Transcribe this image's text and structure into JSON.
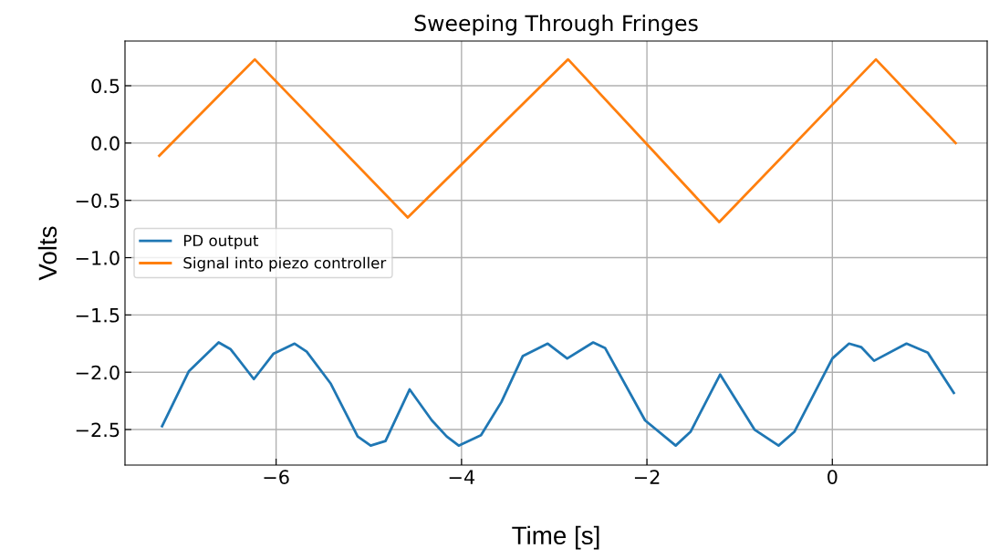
{
  "chart_data": {
    "type": "line",
    "title": "Sweeping Through Fringes",
    "xlabel": "Time [s]",
    "ylabel": "Volts",
    "xlim": [
      -7.63,
      1.67
    ],
    "ylim": [
      -2.81,
      0.89
    ],
    "xticks": [
      -6,
      -4,
      -2,
      0
    ],
    "yticks": [
      {
        "value": -2.5,
        "label": "−2.5"
      },
      {
        "value": -2,
        "label": "−2.0"
      },
      {
        "value": -1.5,
        "label": "−1.5"
      },
      {
        "value": -1,
        "label": "−1.0"
      },
      {
        "value": -0.5,
        "label": "−0.5"
      },
      {
        "value": 0,
        "label": "0.0"
      },
      {
        "value": 0.5,
        "label": "0.5"
      }
    ],
    "grid": true,
    "legend": "left",
    "line_style": "solid",
    "marker": "none",
    "series": [
      {
        "name": "PD output",
        "color": "#1f77b4",
        "x": [
          -7.23,
          -6.94,
          -6.62,
          -6.49,
          -6.24,
          -6.03,
          -5.8,
          -5.67,
          -5.41,
          -5.12,
          -4.98,
          -4.82,
          -4.56,
          -4.32,
          -4.16,
          -4.03,
          -3.79,
          -3.57,
          -3.34,
          -3.07,
          -2.86,
          -2.58,
          -2.45,
          -2.02,
          -1.69,
          -1.53,
          -1.21,
          -0.84,
          -0.58,
          -0.41,
          0.0,
          0.18,
          0.31,
          0.45,
          0.8,
          1.03,
          1.31
        ],
        "values": [
          -2.47,
          -1.99,
          -1.74,
          -1.8,
          -2.06,
          -1.84,
          -1.75,
          -1.82,
          -2.1,
          -2.56,
          -2.64,
          -2.6,
          -2.15,
          -2.42,
          -2.56,
          -2.64,
          -2.55,
          -2.26,
          -1.86,
          -1.75,
          -1.88,
          -1.74,
          -1.79,
          -2.42,
          -2.64,
          -2.52,
          -2.02,
          -2.5,
          -2.64,
          -2.52,
          -1.88,
          -1.75,
          -1.78,
          -1.9,
          -1.75,
          -1.83,
          -2.18
        ]
      },
      {
        "name": "Signal into piezo controller",
        "color": "#ff7f0e",
        "x": [
          -7.26,
          -6.23,
          -4.58,
          -2.85,
          -1.22,
          0.47,
          1.33
        ],
        "values": [
          -0.11,
          0.73,
          -0.65,
          0.73,
          -0.69,
          0.73,
          0.0
        ]
      }
    ]
  }
}
